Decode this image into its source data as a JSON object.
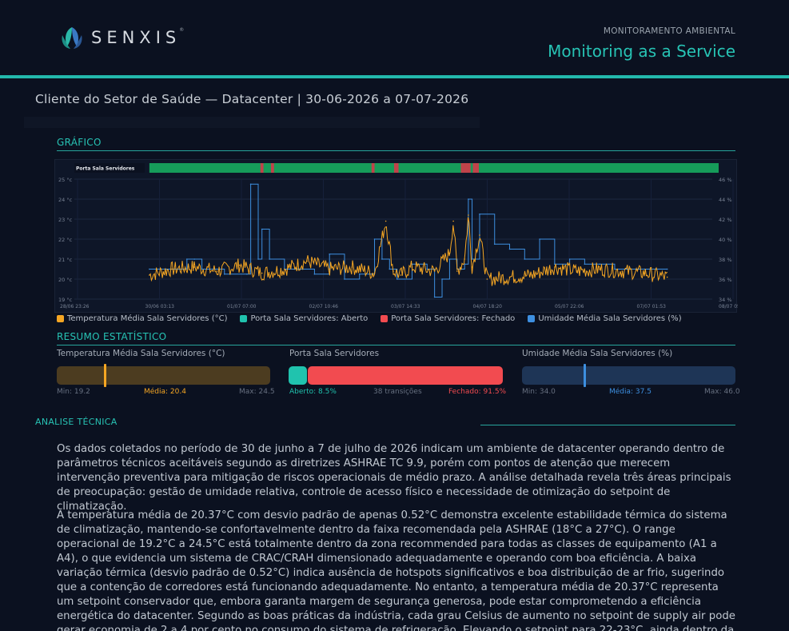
{
  "brand": {
    "name": "SENXIS",
    "reg": "®"
  },
  "header": {
    "kicker": "MONITORAMENTO AMBIENTAL",
    "title": "Monitoring as a Service"
  },
  "report": {
    "subtitle": "Cliente do Setor de Saúde — Datacenter  |  30-06-2026 a 07-07-2026"
  },
  "sections": {
    "chart": "GRÁFICO",
    "summary": "RESUMO ESTATÍSTICO",
    "analysis": "ANALISE TÉCNICA"
  },
  "colors": {
    "accent": "#27c3b4",
    "temperature": "#f5a623",
    "door_open": "#20c3ae",
    "door_closed": "#f24b50",
    "humidity": "#3d8fe0"
  },
  "chart_data": {
    "type": "line",
    "door_track_label": "Porta Sala Servidores",
    "door_closed_intervals_days": [
      [
        2.48,
        2.52
      ],
      [
        2.62,
        2.66
      ],
      [
        3.96,
        4.0
      ],
      [
        4.26,
        4.32
      ],
      [
        5.15,
        5.28
      ],
      [
        5.31,
        5.39
      ]
    ],
    "y_left": {
      "ticks": [
        "25 °c",
        "24 °c",
        "23 °c",
        "22 °c",
        "21 °c",
        "20 °c",
        "19 °c"
      ],
      "range": [
        19,
        25
      ]
    },
    "y_right": {
      "ticks": [
        "46 %",
        "44 %",
        "42 %",
        "40 %",
        "38 %",
        "36 %",
        "34 %"
      ],
      "range": [
        34,
        46
      ]
    },
    "x_ticks": [
      "28/06 23:26",
      "30/06 03:13",
      "01/07 07:00",
      "02/07 10:46",
      "03/07 14:33",
      "04/07 18:20",
      "05/07 22:06",
      "07/07 01:53",
      "08/07 05:40"
    ],
    "series": [
      {
        "name": "Temperatura Média Sala Servidores (°C)",
        "x_days": [
          1.0,
          1.3,
          1.6,
          1.9,
          2.2,
          2.5,
          2.8,
          3.1,
          3.4,
          3.7,
          4.0,
          4.15,
          4.25,
          4.35,
          4.5,
          4.8,
          5.0,
          5.05,
          5.1,
          5.2,
          5.25,
          5.3,
          5.4,
          5.5,
          5.8,
          6.1,
          6.4,
          6.7,
          7.0,
          7.3,
          7.6,
          7.9
        ],
        "values": [
          20.2,
          20.5,
          20.6,
          20.4,
          20.7,
          20.3,
          20.5,
          20.9,
          20.5,
          20.6,
          20.3,
          22.9,
          20.4,
          20.2,
          20.6,
          20.4,
          21.3,
          22.9,
          20.4,
          21.0,
          23.2,
          20.6,
          22.2,
          20.0,
          20.1,
          20.2,
          20.6,
          20.4,
          20.5,
          20.4,
          20.3,
          20.1
        ]
      },
      {
        "name": "Porta Sala Servidores: Aberto"
      },
      {
        "name": "Porta Sala Servidores: Fechado"
      },
      {
        "name": "Umidade Média Sala Servidores (%)",
        "x_days": [
          1.0,
          1.4,
          1.5,
          1.6,
          1.7,
          2.0,
          2.3,
          2.35,
          2.45,
          2.5,
          2.6,
          2.8,
          3.0,
          3.2,
          3.4,
          3.6,
          3.8,
          4.0,
          4.1,
          4.2,
          4.3,
          4.5,
          4.7,
          4.8,
          4.9,
          5.0,
          5.1,
          5.2,
          5.25,
          5.3,
          5.4,
          5.6,
          5.8,
          6.0,
          6.2,
          6.4,
          6.6,
          6.8,
          7.0,
          7.2,
          7.4,
          7.6,
          7.9
        ],
        "values": [
          37.0,
          37.0,
          38.0,
          38.0,
          37.0,
          36.5,
          36.5,
          45.5,
          38.0,
          41.0,
          38.0,
          37.0,
          37.0,
          36.5,
          38.5,
          36.0,
          36.5,
          40.0,
          38.0,
          37.0,
          36.0,
          37.5,
          37.0,
          34.2,
          36.0,
          38.0,
          37.0,
          37.5,
          44.0,
          38.0,
          42.5,
          39.5,
          39.0,
          38.0,
          40.0,
          37.5,
          38.0,
          37.5,
          37.5,
          37.0,
          37.0,
          37.0,
          37.0
        ]
      }
    ]
  },
  "summary": {
    "temperature": {
      "label": "Temperatura Média Sala Servidores (°C)",
      "min_text": "Min: 19.2",
      "mean_text": "Média: 20.4",
      "max_text": "Max: 24.5",
      "min": 19.2,
      "mean": 20.4,
      "max": 24.5
    },
    "door": {
      "label": "Porta Sala Servidores",
      "open_text": "Aberto: 8.5%",
      "transitions_text": "38 transições",
      "closed_text": "Fechado: 91.5%",
      "open_fraction": 0.085
    },
    "humidity": {
      "label": "Umidade Média Sala Servidores (%)",
      "min_text": "Min: 34.0",
      "mean_text": "Média: 37.5",
      "max_text": "Max: 46.0",
      "min": 34.0,
      "mean": 37.5,
      "max": 46.0
    }
  },
  "analysis": {
    "p1": "Os dados coletados no período de 30 de junho a 7 de julho de 2026 indicam um ambiente de datacenter operando dentro de parâmetros técnicos aceitáveis segundo as diretrizes ASHRAE TC 9.9, porém com pontos de atenção que merecem intervenção preventiva para mitigação de riscos operacionais de médio prazo. A análise detalhada revela três áreas principais de preocupação: gestão de umidade relativa, controle de acesso físico e necessidade de otimização do setpoint de climatização.",
    "p2": "A temperatura média de 20.37°C com desvio padrão de apenas 0.52°C demonstra excelente estabilidade térmica do sistema de climatização, mantendo-se confortavelmente dentro da faixa recomendada pela ASHRAE (18°C a 27°C). O range operacional de 19.2°C a 24.5°C está totalmente dentro da zona recommended para todas as classes de equipamento (A1 a A4), o que evidencia um sistema de CRAC/CRAH dimensionado adequadamente e operando com boa eficiência. A baixa variação térmica (desvio padrão de 0.52°C) indica ausência de hotspots significativos e boa distribuição de ar frio, sugerindo que a contenção de corredores está funcionando adequadamente. No entanto, a temperatura média de 20.37°C representa um setpoint conservador que, embora garanta margem de segurança generosa, pode estar comprometendo a eficiência energética do datacenter. Segundo as boas práticas da indústria, cada grau Celsius de aumento no setpoint de supply air pode gerar economia de 2 a 4 por cento no consumo do sistema de refrigeração. Elevando o setpoint para 22-23°C, ainda dentro da"
  }
}
